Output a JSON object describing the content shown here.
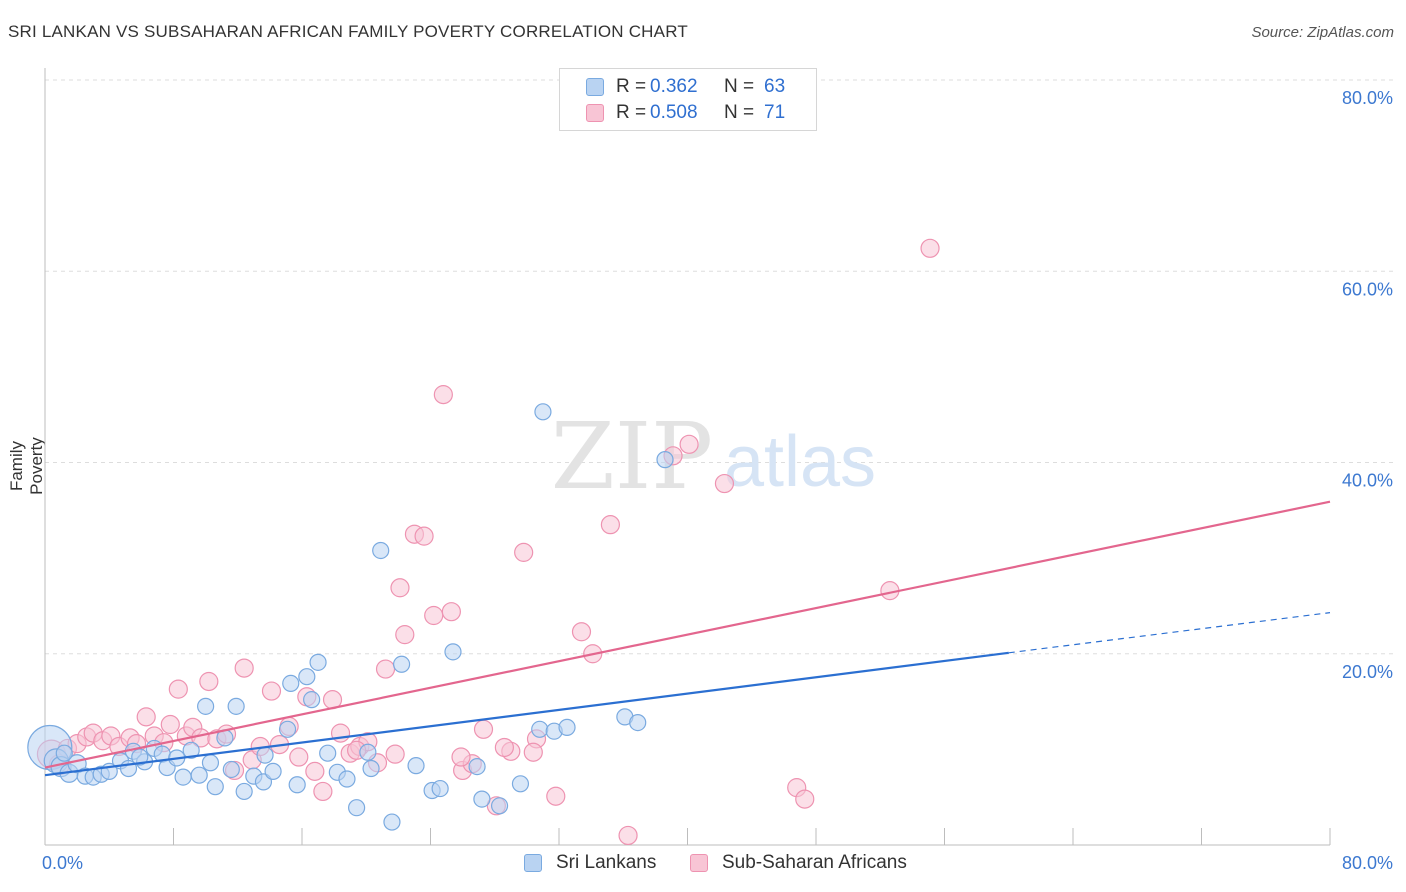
{
  "title": "SRI LANKAN VS SUBSAHARAN AFRICAN FAMILY POVERTY CORRELATION CHART",
  "source": "Source: ZipAtlas.com",
  "watermark": {
    "zip": "ZIP",
    "atlas": "atlas"
  },
  "legend": {
    "rows": [
      {
        "r_label": "R =",
        "r_value": "0.362",
        "n_label": "N =",
        "n_value": "63"
      },
      {
        "r_label": "R =",
        "r_value": "0.508",
        "n_label": "N =",
        "n_value": "71"
      }
    ]
  },
  "bottom_legend": [
    "Sri Lankans",
    "Sub-Saharan Africans"
  ],
  "colors": {
    "blue_fill": "#b9d3f2",
    "blue_stroke": "#7aaae0",
    "blue_line": "#2b6fd1",
    "pink_fill": "#f8c5d5",
    "pink_stroke": "#ee93b1",
    "pink_line": "#e3668e",
    "tick_text": "#3c78d0",
    "grid": "#dddddd"
  },
  "chart_data": {
    "type": "scatter",
    "title": "SRI LANKAN VS SUBSAHARAN AFRICAN FAMILY POVERTY CORRELATION CHART",
    "xlabel": "",
    "ylabel": "Family Poverty",
    "xlim": [
      0,
      80
    ],
    "ylim": [
      0,
      80
    ],
    "x_tick_labels": [
      "0.0%",
      "80.0%"
    ],
    "y_tick_labels": [
      "20.0%",
      "40.0%",
      "60.0%",
      "80.0%"
    ],
    "y_ticks": [
      20,
      40,
      60,
      80
    ],
    "grid": true,
    "legend_position": "top-center",
    "series": [
      {
        "name": "Sri Lankans",
        "color": "#b9d3f2",
        "r": 0.362,
        "n": 63,
        "trend": {
          "x0": 0,
          "y0": 7.3,
          "x1": 60,
          "y1": 20.1,
          "dash_to_x": 80,
          "dash_to_y": 24.3
        },
        "points": [
          [
            0.3,
            10.2,
            22
          ],
          [
            0.7,
            8.8,
            12
          ],
          [
            1.0,
            8.2,
            10
          ],
          [
            1.5,
            7.5,
            9
          ],
          [
            2.0,
            8.5,
            9
          ],
          [
            2.5,
            7.2,
            8
          ],
          [
            3.0,
            7.1,
            8
          ],
          [
            3.5,
            7.4,
            8
          ],
          [
            4.0,
            7.7,
            8
          ],
          [
            4.7,
            8.8,
            8
          ],
          [
            5.2,
            8.0,
            8
          ],
          [
            5.5,
            9.8,
            8
          ],
          [
            6.2,
            8.7,
            8
          ],
          [
            6.8,
            10.1,
            8
          ],
          [
            7.3,
            9.5,
            8
          ],
          [
            7.6,
            8.1,
            8
          ],
          [
            8.2,
            9.1,
            8
          ],
          [
            8.6,
            7.1,
            8
          ],
          [
            9.1,
            9.9,
            8
          ],
          [
            9.6,
            7.3,
            8
          ],
          [
            10.0,
            14.5,
            8
          ],
          [
            10.3,
            8.6,
            8
          ],
          [
            10.6,
            6.1,
            8
          ],
          [
            11.2,
            11.2,
            8
          ],
          [
            11.6,
            7.9,
            8
          ],
          [
            11.9,
            14.5,
            8
          ],
          [
            12.4,
            5.6,
            8
          ],
          [
            13.0,
            7.2,
            8
          ],
          [
            13.6,
            6.6,
            8
          ],
          [
            14.2,
            7.7,
            8
          ],
          [
            15.3,
            16.9,
            8
          ],
          [
            15.7,
            6.3,
            8
          ],
          [
            16.3,
            17.6,
            8
          ],
          [
            16.6,
            15.2,
            8
          ],
          [
            17.0,
            19.1,
            8
          ],
          [
            17.6,
            9.6,
            8
          ],
          [
            18.2,
            7.6,
            8
          ],
          [
            18.8,
            6.9,
            8
          ],
          [
            20.1,
            9.7,
            8
          ],
          [
            20.3,
            8.0,
            8
          ],
          [
            20.9,
            30.8,
            8
          ],
          [
            21.6,
            2.4,
            8
          ],
          [
            22.2,
            18.9,
            8
          ],
          [
            24.1,
            5.7,
            8
          ],
          [
            24.6,
            5.9,
            8
          ],
          [
            25.4,
            20.2,
            8
          ],
          [
            27.2,
            4.8,
            8
          ],
          [
            28.3,
            4.1,
            8
          ],
          [
            29.6,
            6.4,
            8
          ],
          [
            30.8,
            12.1,
            8
          ],
          [
            31.7,
            11.9,
            8
          ],
          [
            32.5,
            12.3,
            8
          ],
          [
            36.1,
            13.4,
            8
          ],
          [
            36.9,
            12.8,
            8
          ],
          [
            38.6,
            40.3,
            8
          ],
          [
            19.4,
            3.9,
            8
          ],
          [
            13.7,
            9.4,
            8
          ],
          [
            26.9,
            8.2,
            8
          ],
          [
            31.0,
            45.3,
            8
          ],
          [
            23.1,
            8.3,
            8
          ],
          [
            5.9,
            9.2,
            8
          ],
          [
            15.1,
            12.1,
            8
          ],
          [
            1.2,
            9.6,
            8
          ]
        ]
      },
      {
        "name": "Sub-Saharan Africans",
        "color": "#f8c5d5",
        "r": 0.508,
        "n": 71,
        "trend": {
          "x0": 0,
          "y0": 8.1,
          "x1": 80,
          "y1": 35.9
        },
        "points": [
          [
            0.4,
            9.5,
            14
          ],
          [
            0.9,
            8.4,
            10
          ],
          [
            1.4,
            10.1,
            9
          ],
          [
            2.0,
            10.6,
            9
          ],
          [
            2.6,
            11.3,
            9
          ],
          [
            3.0,
            11.7,
            9
          ],
          [
            3.6,
            10.9,
            9
          ],
          [
            4.1,
            11.4,
            9
          ],
          [
            4.6,
            10.3,
            9
          ],
          [
            5.3,
            11.2,
            9
          ],
          [
            5.7,
            10.6,
            9
          ],
          [
            6.3,
            13.4,
            9
          ],
          [
            6.8,
            11.4,
            9
          ],
          [
            7.4,
            10.7,
            9
          ],
          [
            7.8,
            12.6,
            9
          ],
          [
            8.3,
            16.3,
            9
          ],
          [
            8.8,
            11.4,
            9
          ],
          [
            9.2,
            12.3,
            9
          ],
          [
            9.7,
            11.2,
            9
          ],
          [
            10.2,
            17.1,
            9
          ],
          [
            10.7,
            11.1,
            9
          ],
          [
            11.3,
            11.6,
            9
          ],
          [
            11.8,
            7.8,
            9
          ],
          [
            12.4,
            18.5,
            9
          ],
          [
            12.9,
            8.9,
            9
          ],
          [
            13.4,
            10.3,
            9
          ],
          [
            14.1,
            16.1,
            9
          ],
          [
            14.6,
            10.5,
            9
          ],
          [
            15.2,
            12.4,
            9
          ],
          [
            15.8,
            9.2,
            9
          ],
          [
            16.3,
            15.5,
            9
          ],
          [
            16.8,
            7.7,
            9
          ],
          [
            17.3,
            5.6,
            9
          ],
          [
            17.9,
            15.2,
            9
          ],
          [
            18.4,
            11.7,
            9
          ],
          [
            19.0,
            9.6,
            9
          ],
          [
            19.6,
            10.3,
            9
          ],
          [
            20.1,
            10.8,
            9
          ],
          [
            20.7,
            8.6,
            9
          ],
          [
            21.2,
            18.4,
            9
          ],
          [
            21.8,
            9.5,
            9
          ],
          [
            22.4,
            22.0,
            9
          ],
          [
            23.0,
            32.5,
            9
          ],
          [
            23.6,
            32.3,
            9
          ],
          [
            24.2,
            24.0,
            9
          ],
          [
            24.8,
            47.1,
            9
          ],
          [
            25.3,
            24.4,
            9
          ],
          [
            26.0,
            7.8,
            9
          ],
          [
            26.6,
            8.5,
            9
          ],
          [
            27.3,
            12.1,
            9
          ],
          [
            28.1,
            4.1,
            9
          ],
          [
            29.0,
            9.8,
            9
          ],
          [
            29.8,
            30.6,
            9
          ],
          [
            30.6,
            11.1,
            9
          ],
          [
            31.8,
            5.1,
            9
          ],
          [
            33.4,
            22.3,
            9
          ],
          [
            34.1,
            20.0,
            9
          ],
          [
            35.2,
            33.5,
            9
          ],
          [
            36.3,
            1.0,
            9
          ],
          [
            39.1,
            40.7,
            9
          ],
          [
            40.1,
            41.9,
            9
          ],
          [
            42.3,
            37.8,
            9
          ],
          [
            46.8,
            6.0,
            9
          ],
          [
            47.3,
            4.8,
            9
          ],
          [
            52.6,
            26.6,
            9
          ],
          [
            55.1,
            62.4,
            9
          ],
          [
            22.1,
            26.9,
            9
          ],
          [
            28.6,
            10.2,
            9
          ],
          [
            19.4,
            9.9,
            9
          ],
          [
            25.9,
            9.2,
            9
          ],
          [
            30.4,
            9.7,
            9
          ]
        ]
      }
    ]
  }
}
